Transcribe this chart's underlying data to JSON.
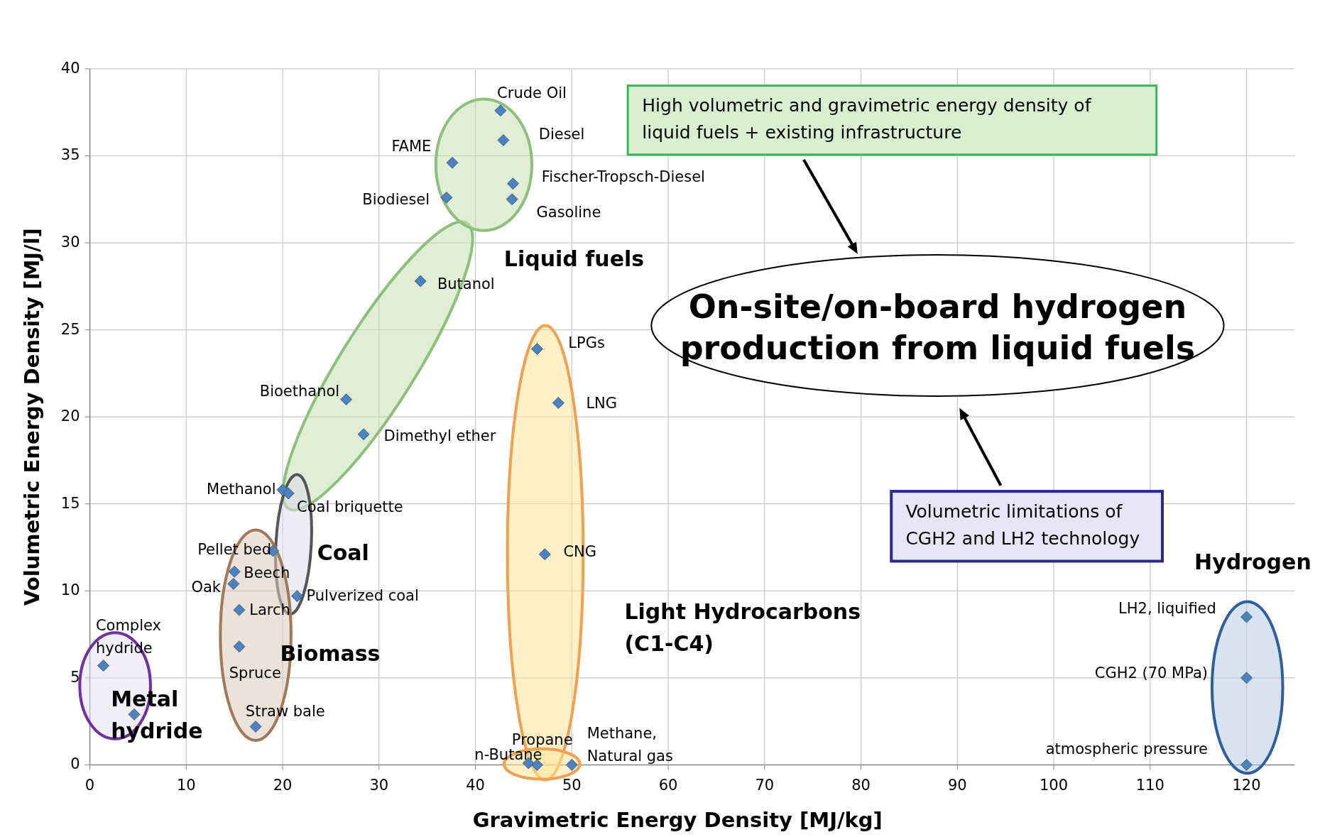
{
  "chart_data": {
    "type": "scatter",
    "xlabel": "Gravimetric Energy Density [MJ/kg]",
    "ylabel": "Volumetric Energy Density [MJ/l]",
    "xlim": [
      0,
      125
    ],
    "xticks": [
      0,
      10,
      20,
      30,
      40,
      50,
      60,
      70,
      80,
      90,
      100,
      110,
      120
    ],
    "ylim": [
      0,
      40
    ],
    "yticks": [
      0,
      5,
      10,
      15,
      20,
      25,
      30,
      35,
      40
    ],
    "grid": true,
    "legend": false,
    "marker": "diamond",
    "series": [
      {
        "color": "#4f81bd",
        "x": [
          42.6,
          42.9,
          37.6,
          43.9,
          37.0,
          43.8,
          34.3,
          26.6,
          28.4,
          20.0,
          20.6,
          19.0,
          15.0,
          14.9,
          15.5,
          21.5,
          15.5,
          17.2,
          1.4,
          4.6,
          46.4,
          48.6,
          47.2,
          46.4,
          45.5,
          50.0,
          120,
          120,
          120
        ],
        "values": [
          37.6,
          35.9,
          34.6,
          33.4,
          32.6,
          32.5,
          27.8,
          21.0,
          19.0,
          15.8,
          15.6,
          12.3,
          11.1,
          10.4,
          8.9,
          9.7,
          6.8,
          2.2,
          5.7,
          2.9,
          23.9,
          20.8,
          12.1,
          0,
          0.1,
          0,
          8.5,
          5.0,
          0
        ]
      }
    ],
    "annotations": [
      {
        "text": "Crude Oil",
        "x": 42.6,
        "y": 37.6
      },
      {
        "text": "Diesel",
        "x": 42.9,
        "y": 35.9
      },
      {
        "text": "FAME",
        "x": 37.6,
        "y": 34.6
      },
      {
        "text": "Fischer-Tropsch-Diesel",
        "x": 43.9,
        "y": 33.4
      },
      {
        "text": "Biodiesel",
        "x": 37.0,
        "y": 32.6
      },
      {
        "text": "Gasoline",
        "x": 43.8,
        "y": 32.5
      },
      {
        "text": "Butanol",
        "x": 34.3,
        "y": 27.8
      },
      {
        "text": "Bioethanol",
        "x": 26.6,
        "y": 21.0
      },
      {
        "text": "Dimethyl ether",
        "x": 28.4,
        "y": 19.0
      },
      {
        "text": "Methanol",
        "x": 20.0,
        "y": 15.8
      },
      {
        "text": "Coal briquette",
        "x": 20.6,
        "y": 15.6
      },
      {
        "text": "Pellet bed",
        "x": 19.0,
        "y": 12.3
      },
      {
        "text": "Beech",
        "x": 15.0,
        "y": 11.1
      },
      {
        "text": "Oak",
        "x": 14.9,
        "y": 10.4
      },
      {
        "text": "Larch",
        "x": 15.5,
        "y": 8.9
      },
      {
        "text": "Pulverized coal",
        "x": 21.5,
        "y": 9.7
      },
      {
        "text": "Spruce",
        "x": 15.5,
        "y": 6.8
      },
      {
        "text": "Straw bale",
        "x": 17.2,
        "y": 2.2
      },
      {
        "text": "Complex\nhydride",
        "x": 1.4,
        "y": 5.7
      },
      {
        "text": "LPGs",
        "x": 46.4,
        "y": 23.9
      },
      {
        "text": "LNG",
        "x": 48.6,
        "y": 20.8
      },
      {
        "text": "CNG",
        "x": 47.2,
        "y": 12.1
      },
      {
        "text": "Propane",
        "x": 46.4,
        "y": 0
      },
      {
        "text": "n-Butane",
        "x": 45.5,
        "y": 0.1
      },
      {
        "text": "Methane,\nNatural gas",
        "x": 50.0,
        "y": 0
      },
      {
        "text": "LH2, liquified",
        "x": 120,
        "y": 8.5
      },
      {
        "text": "CGH2 (70 MPa)",
        "x": 120,
        "y": 5.0
      },
      {
        "text": "atmospheric pressure",
        "x": 120,
        "y": 0
      },
      "High volumetric and gravimetric energy density of\nliquid fuels + existing infrastructure",
      "On-site/on-board hydrogen\nproduction from liquid fuels",
      "Volumetric limitations of\nCGH2 and LH2 technology",
      "Liquid fuels",
      "Coal",
      "Biomass",
      "Metal\nhydride",
      "Light Hydrocarbons\n(C1-C4)",
      "Hydrogen"
    ]
  }
}
